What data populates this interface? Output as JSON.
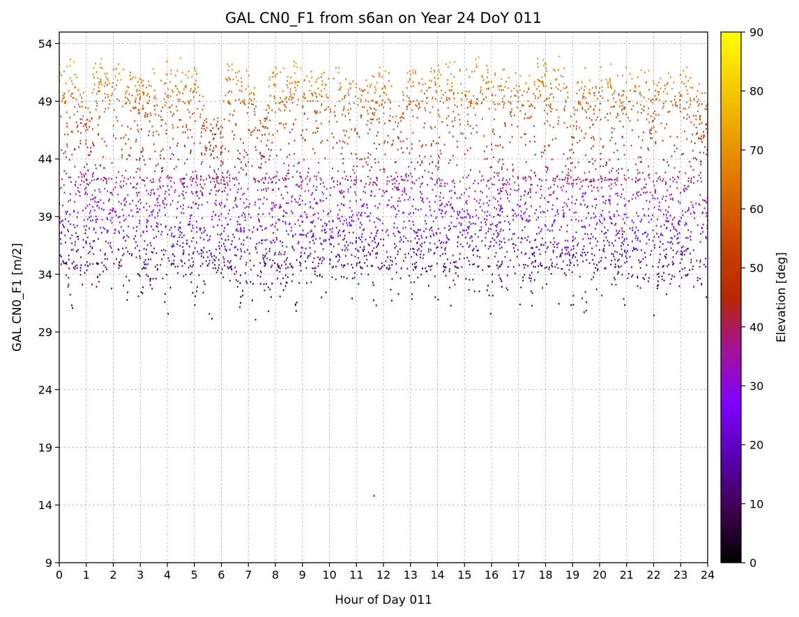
{
  "chart_data": {
    "type": "scatter",
    "title": "GAL CN0_F1 from s6an on Year 24 DoY 011",
    "xlabel": "Hour of Day 011",
    "ylabel": "GAL CN0_F1 [m/2]",
    "xlim": [
      0,
      24
    ],
    "ylim": [
      9,
      55
    ],
    "xticks": [
      "0",
      "1",
      "2",
      "3",
      "4",
      "5",
      "6",
      "7",
      "8",
      "9",
      "10",
      "11",
      "12",
      "13",
      "14",
      "15",
      "16",
      "17",
      "18",
      "19",
      "20",
      "21",
      "22",
      "23",
      "24"
    ],
    "yticks": [
      "9",
      "14",
      "19",
      "24",
      "29",
      "34",
      "39",
      "44",
      "49",
      "54"
    ],
    "grid": true,
    "colorbar": {
      "label": "Elevation [deg]",
      "range": [
        0,
        90
      ],
      "ticks": [
        "0",
        "10",
        "20",
        "30",
        "40",
        "50",
        "60",
        "70",
        "80",
        "90"
      ],
      "colormap": "gnuplot"
    },
    "series": [
      {
        "description_note": "",
        "x": [
          0.0,
          0.25,
          0.5,
          0.75,
          1.0,
          1.25,
          1.5,
          1.75,
          2.0,
          2.25,
          2.5,
          2.75,
          3.0,
          3.25,
          3.5,
          3.75,
          4.0,
          4.25,
          4.5,
          4.75,
          5.0,
          5.25,
          5.5,
          5.75,
          6.0,
          6.25,
          6.5,
          6.75,
          7.0,
          7.25,
          7.5,
          7.75,
          8.0,
          8.25,
          8.5,
          8.75,
          9.0,
          9.25,
          9.5,
          9.75,
          10.0,
          10.25,
          10.5,
          10.75,
          11.0,
          11.25,
          11.5,
          11.75,
          12.0,
          12.25,
          12.5,
          12.75,
          13.0,
          13.25,
          13.5,
          13.75,
          14.0,
          14.25,
          14.5,
          14.75,
          15.0,
          15.25,
          15.5,
          15.75,
          16.0,
          16.25,
          16.5,
          16.75,
          17.0,
          17.25,
          17.5,
          17.75,
          18.0,
          18.25,
          18.5,
          18.75,
          19.0,
          19.25,
          19.5,
          19.75,
          20.0,
          20.25,
          20.5,
          20.75,
          21.0,
          21.25,
          21.5,
          21.75,
          22.0,
          22.25,
          22.5,
          22.75,
          23.0,
          23.25,
          23.5,
          23.75,
          24.0
        ],
        "y_max": [
          53,
          52,
          53,
          51,
          49,
          52,
          53,
          52,
          53,
          53,
          52,
          52,
          52,
          51,
          52,
          51,
          53,
          51,
          53,
          52,
          52,
          51,
          47,
          48,
          48,
          53,
          52,
          52,
          52,
          51,
          47,
          52,
          53,
          52,
          52,
          53,
          52,
          52,
          51,
          52,
          51,
          52,
          52,
          51,
          51,
          52,
          51,
          52,
          52,
          52,
          48,
          52,
          52,
          52,
          52,
          52,
          53,
          52,
          53,
          52,
          52,
          52,
          53,
          52,
          53,
          52,
          52,
          51,
          52,
          51,
          52,
          53,
          53,
          52,
          53,
          52,
          48,
          52,
          52,
          51,
          52,
          53,
          52,
          51,
          52,
          52,
          52,
          52,
          51,
          52,
          52,
          52,
          52,
          52,
          51,
          51,
          49
        ],
        "y_min": [
          30,
          34,
          30,
          34,
          31,
          31,
          33,
          34,
          30,
          35,
          31,
          34,
          31,
          34,
          32,
          34,
          30,
          34,
          31,
          34,
          31,
          34,
          28.5,
          31,
          34,
          33,
          34,
          30,
          34,
          28.8,
          34,
          30,
          34,
          31,
          34,
          30,
          34,
          31,
          34,
          30,
          34,
          31,
          33,
          30,
          34,
          31,
          34,
          29,
          34,
          32,
          29,
          34,
          31,
          34,
          30,
          34,
          31,
          34,
          30,
          34,
          29.5,
          34,
          31,
          34,
          30,
          34,
          31,
          34,
          30,
          34,
          31,
          34,
          30,
          34,
          31,
          34,
          30,
          34,
          29,
          34,
          31,
          34,
          32,
          34,
          30,
          34,
          31,
          34,
          30,
          34,
          32,
          34,
          30,
          34,
          32,
          33,
          29
        ]
      }
    ],
    "outliers": [
      {
        "x": 11.65,
        "y": 14.8
      }
    ]
  }
}
